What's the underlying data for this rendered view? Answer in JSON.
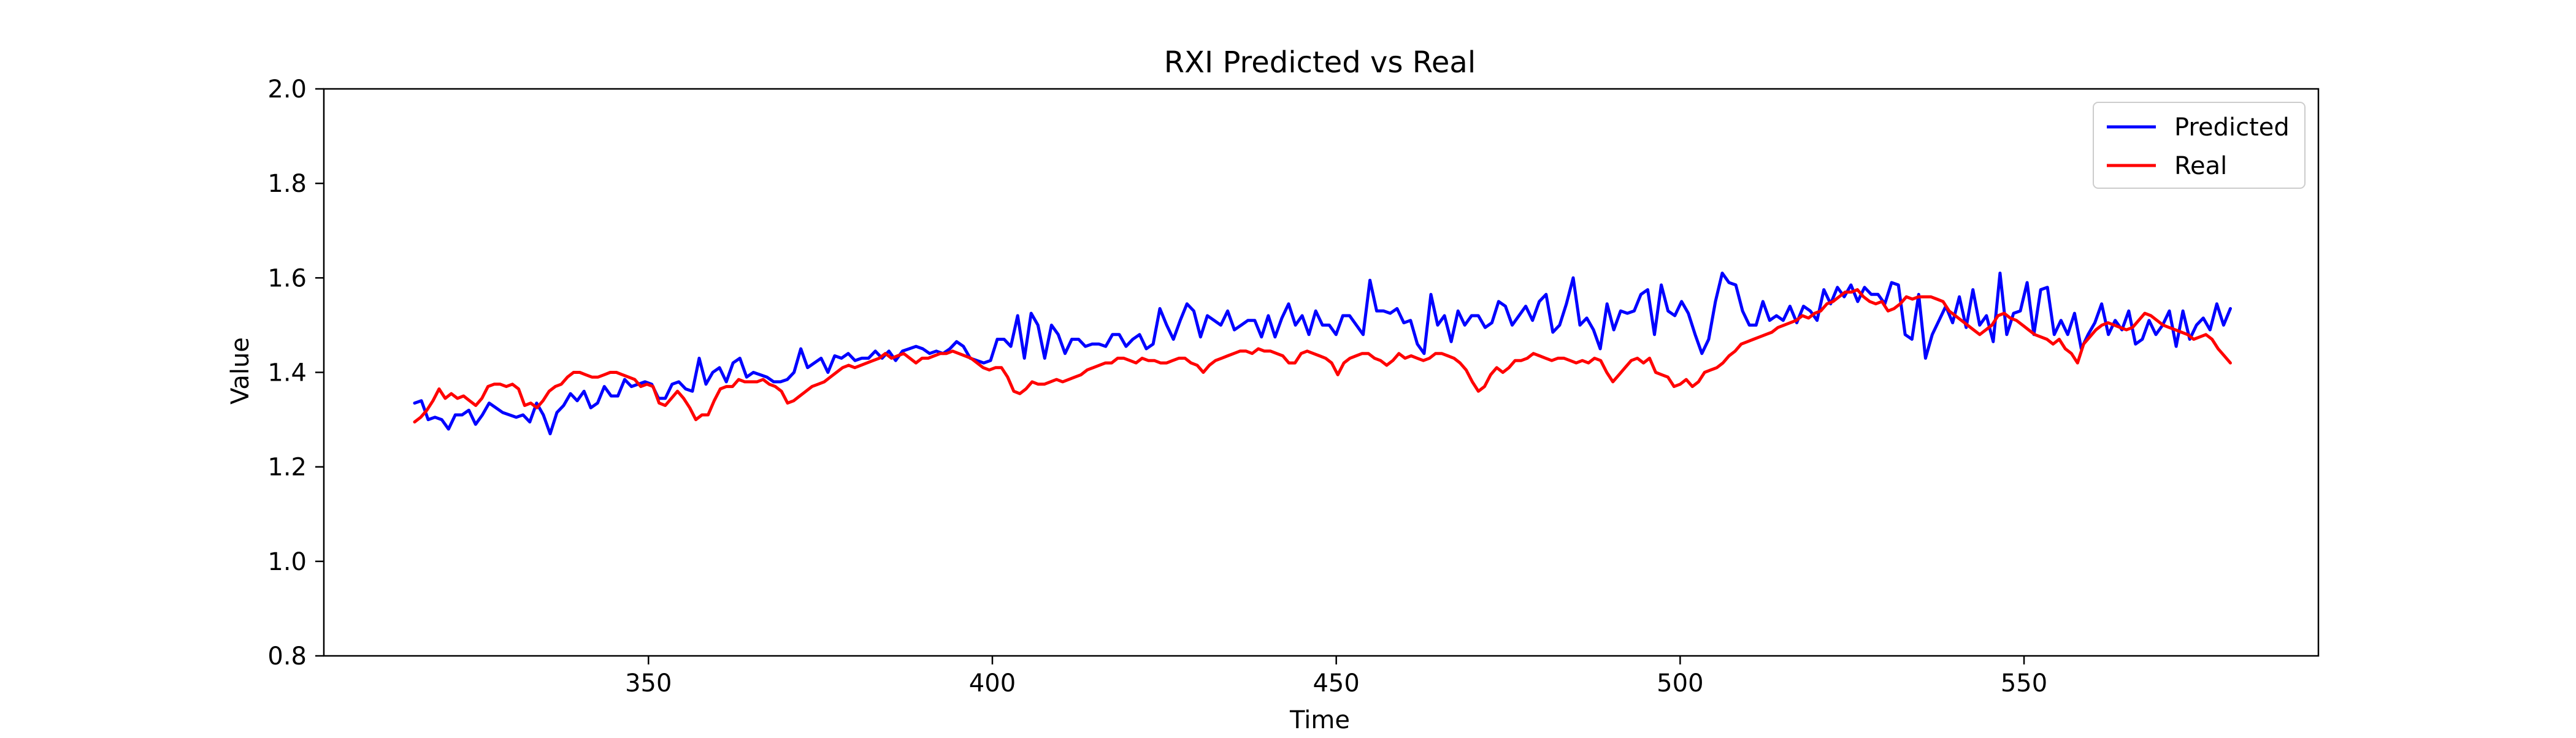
{
  "chart_data": {
    "type": "line",
    "title": "RXI Predicted vs Real",
    "xlabel": "Time",
    "ylabel": "Value",
    "xlim": [
      302.8,
      592.8
    ],
    "ylim": [
      0.8,
      2.0
    ],
    "xticks": [
      "350",
      "400",
      "450",
      "500",
      "550"
    ],
    "yticks": [
      "0.8",
      "1.0",
      "1.2",
      "1.4",
      "1.6",
      "1.8",
      "2.0"
    ],
    "grid": false,
    "legend_placement": "top-right",
    "x_start": 316,
    "x_end": 580,
    "series": [
      {
        "name": "Predicted",
        "color": "#0000ff",
        "values": [
          1.335,
          1.34,
          1.3,
          1.305,
          1.3,
          1.28,
          1.31,
          1.31,
          1.32,
          1.29,
          1.31,
          1.335,
          1.325,
          1.315,
          1.31,
          1.305,
          1.31,
          1.295,
          1.335,
          1.31,
          1.27,
          1.315,
          1.33,
          1.355,
          1.34,
          1.36,
          1.325,
          1.335,
          1.37,
          1.35,
          1.35,
          1.385,
          1.37,
          1.375,
          1.38,
          1.375,
          1.345,
          1.345,
          1.375,
          1.38,
          1.365,
          1.36,
          1.43,
          1.375,
          1.4,
          1.41,
          1.38,
          1.42,
          1.43,
          1.39,
          1.4,
          1.395,
          1.39,
          1.38,
          1.38,
          1.385,
          1.4,
          1.45,
          1.41,
          1.42,
          1.43,
          1.4,
          1.435,
          1.43,
          1.44,
          1.425,
          1.43,
          1.43,
          1.445,
          1.43,
          1.445,
          1.425,
          1.445,
          1.45,
          1.455,
          1.45,
          1.44,
          1.445,
          1.44,
          1.45,
          1.465,
          1.455,
          1.43,
          1.425,
          1.42,
          1.425,
          1.47,
          1.47,
          1.455,
          1.52,
          1.43,
          1.525,
          1.5,
          1.43,
          1.5,
          1.48,
          1.44,
          1.47,
          1.47,
          1.455,
          1.46,
          1.46,
          1.455,
          1.48,
          1.48,
          1.455,
          1.47,
          1.48,
          1.45,
          1.46,
          1.535,
          1.5,
          1.47,
          1.51,
          1.545,
          1.53,
          1.475,
          1.52,
          1.51,
          1.5,
          1.53,
          1.49,
          1.5,
          1.51,
          1.51,
          1.475,
          1.52,
          1.475,
          1.515,
          1.545,
          1.5,
          1.52,
          1.48,
          1.53,
          1.5,
          1.5,
          1.48,
          1.52,
          1.52,
          1.5,
          1.48,
          1.595,
          1.53,
          1.53,
          1.525,
          1.535,
          1.505,
          1.51,
          1.46,
          1.44,
          1.565,
          1.5,
          1.52,
          1.465,
          1.53,
          1.5,
          1.52,
          1.52,
          1.495,
          1.505,
          1.55,
          1.54,
          1.5,
          1.52,
          1.54,
          1.51,
          1.55,
          1.565,
          1.485,
          1.5,
          1.545,
          1.6,
          1.5,
          1.515,
          1.49,
          1.45,
          1.545,
          1.49,
          1.53,
          1.525,
          1.53,
          1.565,
          1.575,
          1.48,
          1.585,
          1.53,
          1.52,
          1.55,
          1.525,
          1.48,
          1.44,
          1.47,
          1.55,
          1.61,
          1.59,
          1.585,
          1.53,
          1.5,
          1.5,
          1.55,
          1.51,
          1.52,
          1.51,
          1.54,
          1.505,
          1.54,
          1.53,
          1.51,
          1.575,
          1.545,
          1.58,
          1.56,
          1.585,
          1.55,
          1.58,
          1.565,
          1.565,
          1.545,
          1.59,
          1.585,
          1.48,
          1.47,
          1.565,
          1.43,
          1.48,
          1.51,
          1.54,
          1.505,
          1.56,
          1.495,
          1.575,
          1.5,
          1.52,
          1.465,
          1.61,
          1.48,
          1.525,
          1.53,
          1.59,
          1.48,
          1.575,
          1.58,
          1.48,
          1.51,
          1.48,
          1.525,
          1.45,
          1.48,
          1.505,
          1.545,
          1.48,
          1.51,
          1.49,
          1.53,
          1.46,
          1.47,
          1.51,
          1.48,
          1.5,
          1.53,
          1.455,
          1.53,
          1.47,
          1.5,
          1.515,
          1.49,
          1.545,
          1.5,
          1.535
        ]
      },
      {
        "name": "Real",
        "color": "#ff0000",
        "values": [
          1.295,
          1.305,
          1.32,
          1.34,
          1.365,
          1.345,
          1.355,
          1.345,
          1.35,
          1.34,
          1.33,
          1.345,
          1.37,
          1.375,
          1.375,
          1.37,
          1.375,
          1.365,
          1.33,
          1.335,
          1.325,
          1.34,
          1.36,
          1.37,
          1.375,
          1.39,
          1.4,
          1.4,
          1.395,
          1.39,
          1.39,
          1.395,
          1.4,
          1.4,
          1.395,
          1.39,
          1.385,
          1.37,
          1.375,
          1.37,
          1.335,
          1.33,
          1.345,
          1.36,
          1.345,
          1.325,
          1.3,
          1.31,
          1.31,
          1.34,
          1.365,
          1.37,
          1.37,
          1.385,
          1.38,
          1.38,
          1.38,
          1.385,
          1.375,
          1.37,
          1.36,
          1.335,
          1.34,
          1.35,
          1.36,
          1.37,
          1.375,
          1.38,
          1.39,
          1.4,
          1.41,
          1.415,
          1.41,
          1.415,
          1.42,
          1.425,
          1.43,
          1.44,
          1.43,
          1.435,
          1.44,
          1.43,
          1.42,
          1.43,
          1.43,
          1.435,
          1.44,
          1.44,
          1.445,
          1.44,
          1.435,
          1.43,
          1.42,
          1.41,
          1.405,
          1.41,
          1.41,
          1.39,
          1.36,
          1.355,
          1.365,
          1.38,
          1.375,
          1.375,
          1.38,
          1.385,
          1.38,
          1.385,
          1.39,
          1.395,
          1.405,
          1.41,
          1.415,
          1.42,
          1.42,
          1.43,
          1.43,
          1.425,
          1.42,
          1.43,
          1.425,
          1.425,
          1.42,
          1.42,
          1.425,
          1.43,
          1.43,
          1.42,
          1.415,
          1.4,
          1.415,
          1.425,
          1.43,
          1.435,
          1.44,
          1.445,
          1.445,
          1.44,
          1.45,
          1.445,
          1.445,
          1.44,
          1.435,
          1.42,
          1.42,
          1.44,
          1.445,
          1.44,
          1.435,
          1.43,
          1.42,
          1.395,
          1.42,
          1.43,
          1.435,
          1.44,
          1.44,
          1.43,
          1.425,
          1.415,
          1.425,
          1.44,
          1.43,
          1.435,
          1.43,
          1.425,
          1.43,
          1.44,
          1.44,
          1.435,
          1.43,
          1.42,
          1.405,
          1.38,
          1.36,
          1.37,
          1.395,
          1.41,
          1.4,
          1.41,
          1.425,
          1.425,
          1.43,
          1.44,
          1.435,
          1.43,
          1.425,
          1.43,
          1.43,
          1.425,
          1.42,
          1.425,
          1.42,
          1.43,
          1.425,
          1.4,
          1.38,
          1.395,
          1.41,
          1.425,
          1.43,
          1.42,
          1.43,
          1.4,
          1.395,
          1.39,
          1.37,
          1.375,
          1.385,
          1.37,
          1.38,
          1.4,
          1.405,
          1.41,
          1.42,
          1.435,
          1.445,
          1.46,
          1.465,
          1.47,
          1.475,
          1.48,
          1.485,
          1.495,
          1.5,
          1.505,
          1.51,
          1.52,
          1.515,
          1.525,
          1.53,
          1.545,
          1.55,
          1.56,
          1.57,
          1.57,
          1.575,
          1.56,
          1.55,
          1.545,
          1.55,
          1.53,
          1.535,
          1.545,
          1.56,
          1.555,
          1.56,
          1.56,
          1.56,
          1.555,
          1.55,
          1.53,
          1.52,
          1.51,
          1.5,
          1.49,
          1.48,
          1.49,
          1.5,
          1.52,
          1.525,
          1.515,
          1.51,
          1.5,
          1.49,
          1.48,
          1.475,
          1.47,
          1.46,
          1.47,
          1.45,
          1.44,
          1.42,
          1.46,
          1.475,
          1.49,
          1.5,
          1.505,
          1.5,
          1.495,
          1.49,
          1.495,
          1.51,
          1.525,
          1.52,
          1.51,
          1.5,
          1.495,
          1.49,
          1.485,
          1.48,
          1.47,
          1.475,
          1.48,
          1.47,
          1.45,
          1.435,
          1.42
        ]
      }
    ]
  }
}
